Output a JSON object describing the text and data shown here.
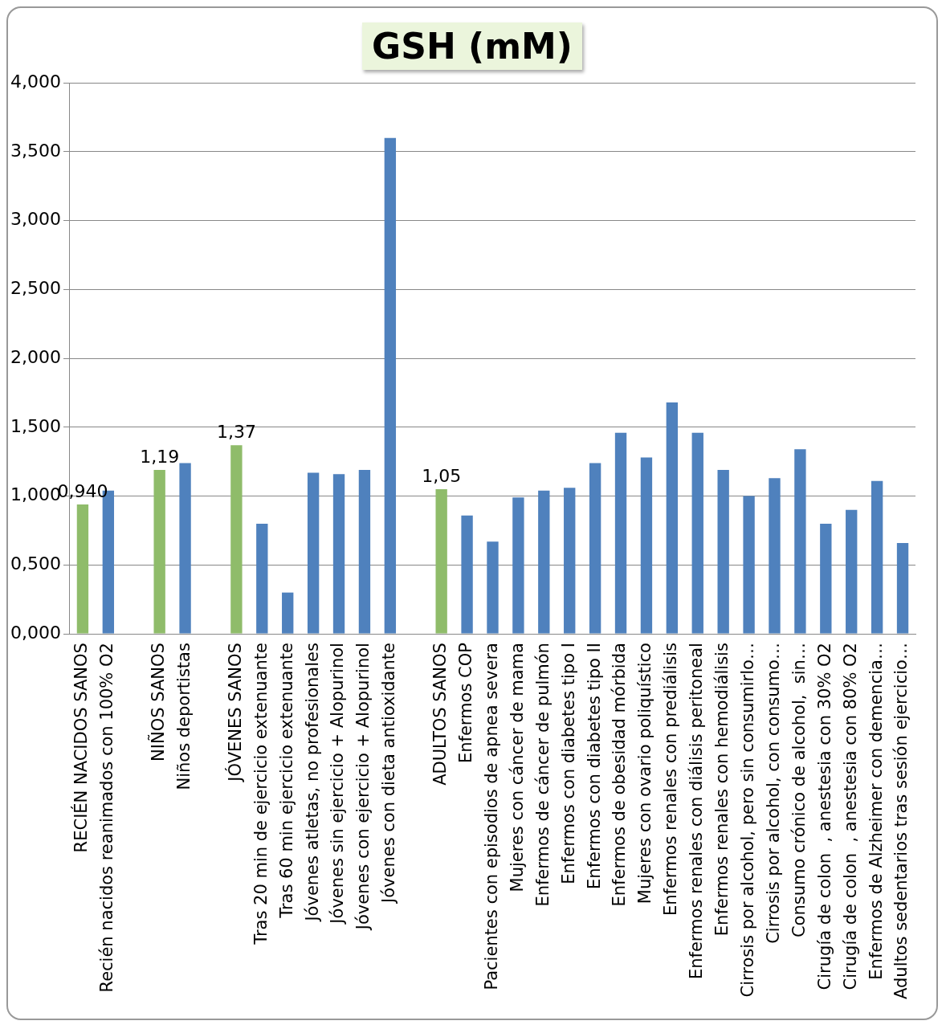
{
  "chart_data": {
    "type": "bar",
    "title": "GSH (mM)",
    "categories": [
      "RECIÉN NACIDOS SANOS",
      "Recién nacidos reanimados con 100% O2",
      null,
      "NIÑOS SANOS",
      "Niños deportistas",
      null,
      "JÓVENES SANOS",
      "Tras 20 min de ejercicio extenuante",
      "Tras 60 min ejercicio extenuante",
      "Jóvenes atletas, no profesionales",
      "Jóvenes sin ejercicio + Alopurinol",
      "Jóvenes con ejercicio + Alopurinol",
      "Jóvenes con dieta antioxidante",
      null,
      "ADULTOS SANOS",
      "Enfermos COP",
      "Pacientes con episodios de apnea severa",
      "Mujeres con cáncer de mama",
      "Enfermos de cáncer de pulmón",
      "Enfermos con diabetes tipo I",
      "Enfermos con diabetes tipo II",
      "Enfermos de obesidad mórbida",
      "Mujeres con ovario poliquístico",
      "Enfermos renales con prediálisis",
      "Enfermos renales con diálisis peritoneal",
      "Enfermos renales con hemodiálisis",
      "Cirrosis por alcohol, pero sin consumirlo…",
      "Cirrosis por alcohol, con consumo…",
      "Consumo crónico de alcohol,  sin…",
      "Cirugía de colon  , anestesia con 30% O2",
      "Cirugía de colon  , anestesia con 80% O2",
      "Enfermos de Alzheimer con demencia…",
      "Adultos sedentarios tras sesión ejercicio…"
    ],
    "values": [
      0.94,
      1.04,
      null,
      1.19,
      1.24,
      null,
      1.37,
      0.8,
      0.3,
      1.17,
      1.16,
      1.19,
      3.6,
      null,
      1.05,
      0.86,
      0.67,
      0.99,
      1.04,
      1.06,
      1.24,
      1.46,
      1.28,
      1.68,
      1.46,
      1.19,
      1.0,
      1.13,
      1.34,
      0.8,
      0.9,
      1.11,
      0.66
    ],
    "colors": [
      "#8fbc6a",
      "#4f81bd",
      null,
      "#8fbc6a",
      "#4f81bd",
      null,
      "#8fbc6a",
      "#4f81bd",
      "#4f81bd",
      "#4f81bd",
      "#4f81bd",
      "#4f81bd",
      "#4f81bd",
      null,
      "#8fbc6a",
      "#4f81bd",
      "#4f81bd",
      "#4f81bd",
      "#4f81bd",
      "#4f81bd",
      "#4f81bd",
      "#4f81bd",
      "#4f81bd",
      "#4f81bd",
      "#4f81bd",
      "#4f81bd",
      "#4f81bd",
      "#4f81bd",
      "#4f81bd",
      "#4f81bd",
      "#4f81bd",
      "#4f81bd",
      "#4f81bd"
    ],
    "value_labels": [
      "0,940",
      null,
      null,
      "1,19",
      null,
      null,
      "1,37",
      null,
      null,
      null,
      null,
      null,
      null,
      null,
      "1,05",
      null,
      null,
      null,
      null,
      null,
      null,
      null,
      null,
      null,
      null,
      null,
      null,
      null,
      null,
      null,
      null,
      null,
      null
    ],
    "ylim": [
      0,
      4
    ],
    "yticks": [
      {
        "value": 0,
        "label": "0,000"
      },
      {
        "value": 0.5,
        "label": "0,500"
      },
      {
        "value": 1,
        "label": "1,000"
      },
      {
        "value": 1.5,
        "label": "1,500"
      },
      {
        "value": 2,
        "label": "2,000"
      },
      {
        "value": 2.5,
        "label": "2,500"
      },
      {
        "value": 3,
        "label": "3,000"
      },
      {
        "value": 3.5,
        "label": "3,500"
      },
      {
        "value": 4,
        "label": "4,000"
      }
    ],
    "grid": "y",
    "legend": false
  }
}
